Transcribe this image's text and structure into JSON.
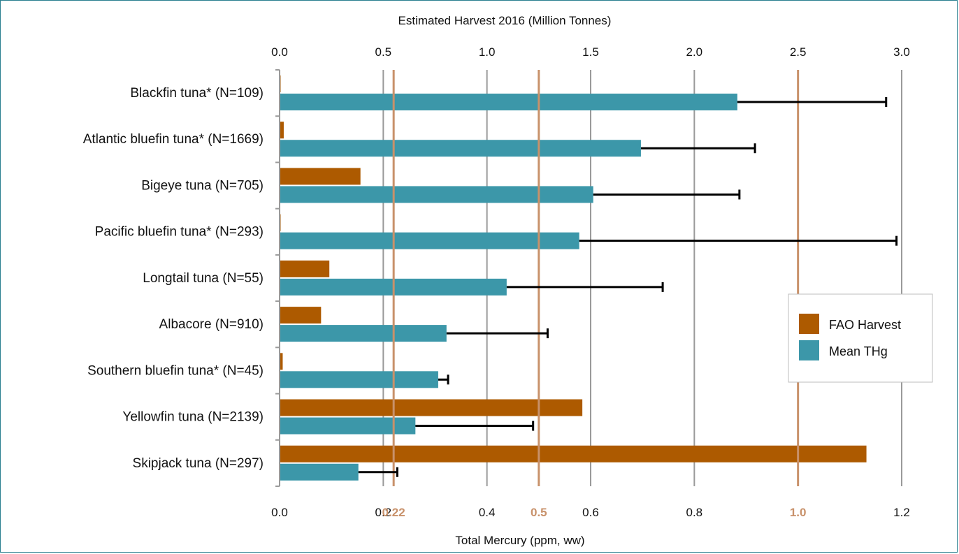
{
  "colors": {
    "harvest": "#AD5A00",
    "thg": "#3C97A9",
    "grid": "#9a9a9a",
    "reference": "#C8916A",
    "errorbar": "#000000"
  },
  "chart_data": {
    "type": "bar",
    "orientation": "horizontal",
    "categories": [
      "Blackfin tuna* (N=109)",
      "Atlantic bluefin tuna* (N=1669)",
      "Bigeye tuna (N=705)",
      "Pacific bluefin tuna* (N=293)",
      "Longtail tuna (N=55)",
      "Albacore (N=910)",
      "Southern bluefin tuna* (N=45)",
      "Yellowfin tuna (N=2139)",
      "Skipjack tuna (N=297)"
    ],
    "top_axis": {
      "label": "Estimated Harvest 2016 (Million Tonnes)",
      "range": [
        0,
        3.0
      ],
      "ticks": [
        "0.0",
        "0.5",
        "1.0",
        "1.5",
        "2.0",
        "2.5",
        "3.0"
      ]
    },
    "bottom_axis": {
      "label": "Total Mercury (ppm, ww)",
      "range": [
        0,
        1.2
      ],
      "ticks": [
        "0.0",
        "0.2",
        "0.4",
        "0.6",
        "0.8",
        "1.2"
      ],
      "tick_values": [
        0.0,
        0.2,
        0.4,
        0.6,
        0.8,
        1.2
      ]
    },
    "reference_lines": [
      {
        "value": 0.22,
        "label": "0.22"
      },
      {
        "value": 0.5,
        "label": "0.5"
      },
      {
        "value": 1.0,
        "label": "1.0"
      }
    ],
    "series": [
      {
        "name": "FAO Harvest",
        "axis": "top",
        "values": [
          0.005,
          0.02,
          0.39,
          0.005,
          0.24,
          0.2,
          0.015,
          1.46,
          2.83
        ]
      },
      {
        "name": "Mean THg",
        "axis": "bottom",
        "values": [
          0.883,
          0.697,
          0.605,
          0.578,
          0.438,
          0.322,
          0.306,
          0.262,
          0.152
        ],
        "error_upper": [
          1.17,
          0.917,
          0.887,
          1.19,
          0.739,
          0.517,
          0.325,
          0.489,
          0.227
        ]
      }
    ],
    "legend": {
      "position": "right"
    },
    "grid": true
  }
}
